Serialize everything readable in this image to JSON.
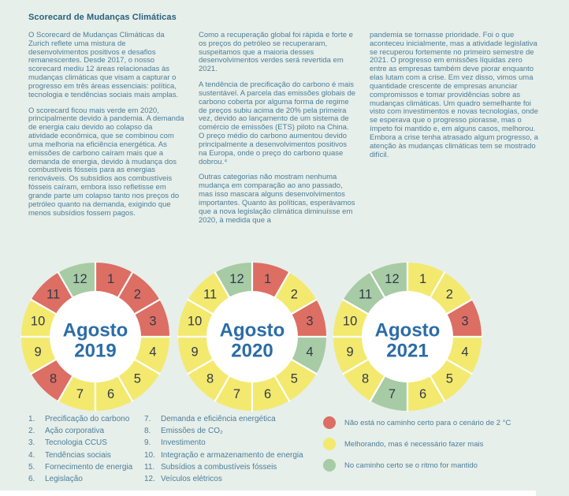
{
  "title": "Scorecard de Mudanças Climáticas",
  "columns": [
    {
      "paragraphs": [
        "O Scorecard de Mudanças Climáticas da Zurich reflete uma mistura de desenvolvimentos positivos e desafios remanescentes. Desde 2017, o nosso scorecard mediu 12 áreas relacionadas às mudanças climáticas que visam a capturar o progresso em três áreas essenciais: política, tecnologia e tendências sociais mais amplas.",
        "O scorecard ficou mais verde em 2020, principalmente devido à pandemia. A demanda de energia caiu devido ao colapso da atividade econômica, que se combinou com uma melhoria na eficiência energética. As emissões de carbono caíram mais que a demanda de energia, devido à mudança dos combustíveis fósseis para as energias renováveis. Os subsídios aos combustíveis fósseis caíram, embora isso refletisse em grande parte um colapso tanto nos preços do petróleo quanto na demanda, exigindo que menos subsídios fossem pagos."
      ]
    },
    {
      "paragraphs": [
        "Como a recuperação global foi rápida e forte e os preços do petróleo se recuperaram, suspeitamos que a maioria desses desenvolvimentos verdes será revertida em 2021.",
        "A tendência de precificação do carbono é mais sustentável. A parcela das emissões globais de carbono coberta por alguma forma de regime de preços subiu acima de 20% pela primeira vez, devido ao lançamento de um sistema de comércio de emissões (ETS) piloto na China. O preço médio do carbono aumentou devido principalmente a desenvolvimentos positivos na Europa, onde o preço do carbono quase dobrou.⁴",
        "Outras categorias não mostram nenhuma mudança em comparação ao ano passado, mas isso mascara alguns desenvolvimentos importantes. Quanto às políticas, esperávamos que a nova legislação climática diminuísse em 2020, à medida que a"
      ]
    },
    {
      "paragraphs": [
        "pandemia se tornasse prioridade. Foi o que aconteceu inicialmente, mas a atividade legislativa se recuperou fortemente no primeiro semestre de 2021. O progresso em emissões líquidas zero entre as empresas também deve piorar enquanto elas lutam com a crise. Em vez disso, vimos uma quantidade crescente de empresas anunciar compromissos e tomar providências sobre as mudanças climáticas. Um quadro semelhante foi visto com investimentos e novas tecnologias, onde se esperava que o progresso piorasse, mas o ímpeto foi mantido e, em alguns casos, melhorou. Embora a crise tenha atrasado algum progresso, a atenção às mudanças climáticas tem se mostrado difícil."
      ]
    }
  ],
  "chart_data": [
    {
      "type": "pie",
      "variant": "donut",
      "title": "Agosto 2019",
      "center_label": [
        "Agosto",
        "2019"
      ],
      "segment_numbers": [
        1,
        2,
        3,
        4,
        5,
        6,
        7,
        8,
        9,
        10,
        11,
        12
      ],
      "statuses": [
        "red",
        "red",
        "red",
        "yellow",
        "yellow",
        "yellow",
        "yellow",
        "red",
        "yellow",
        "yellow",
        "red",
        "green"
      ]
    },
    {
      "type": "pie",
      "variant": "donut",
      "title": "Agosto 2020",
      "center_label": [
        "Agosto",
        "2020"
      ],
      "segment_numbers": [
        1,
        2,
        3,
        4,
        5,
        6,
        7,
        8,
        9,
        10,
        11,
        12
      ],
      "statuses": [
        "red",
        "yellow",
        "red",
        "green",
        "yellow",
        "yellow",
        "yellow",
        "yellow",
        "yellow",
        "yellow",
        "yellow",
        "green"
      ]
    },
    {
      "type": "pie",
      "variant": "donut",
      "title": "Agosto 2021",
      "center_label": [
        "Agosto",
        "2021"
      ],
      "segment_numbers": [
        1,
        2,
        3,
        4,
        5,
        6,
        7,
        8,
        9,
        10,
        11,
        12
      ],
      "statuses": [
        "yellow",
        "yellow",
        "red",
        "yellow",
        "yellow",
        "yellow",
        "green",
        "yellow",
        "yellow",
        "yellow",
        "green",
        "green"
      ]
    }
  ],
  "categories": [
    {
      "num": "1.",
      "label": "Precificação do carbono"
    },
    {
      "num": "2.",
      "label": "Ação corporativa"
    },
    {
      "num": "3.",
      "label": "Tecnologia CCUS"
    },
    {
      "num": "4.",
      "label": "Tendências sociais"
    },
    {
      "num": "5.",
      "label": "Fornecimento de energia"
    },
    {
      "num": "6.",
      "label": "Legislação"
    },
    {
      "num": "7.",
      "label": "Demanda e eficiência energética"
    },
    {
      "num": "8.",
      "label": "Emissões de CO₂"
    },
    {
      "num": "9.",
      "label": "Investimento"
    },
    {
      "num": "10.",
      "label": "Integração e armazenamento de energia"
    },
    {
      "num": "11.",
      "label": "Subsídios a combustíveis fósseis"
    },
    {
      "num": "12.",
      "label": "Veículos elétricos"
    }
  ],
  "status_legend": [
    {
      "key": "red",
      "label": "Não está no caminho certo para o cenário de 2 °C"
    },
    {
      "key": "yellow",
      "label": "Melhorando, mas é necessário fazer mais"
    },
    {
      "key": "green",
      "label": "No caminho certo se o ritmo for mantido"
    }
  ],
  "colors": {
    "red": "#DC6E63",
    "yellow": "#F3E96F",
    "green": "#A7CBA5",
    "background": "#E7EFEA",
    "center_text": "#2C6CA7",
    "segment_number_text": "#333B49",
    "body_text": "#4B7E9A",
    "heading_text": "#28607B"
  }
}
